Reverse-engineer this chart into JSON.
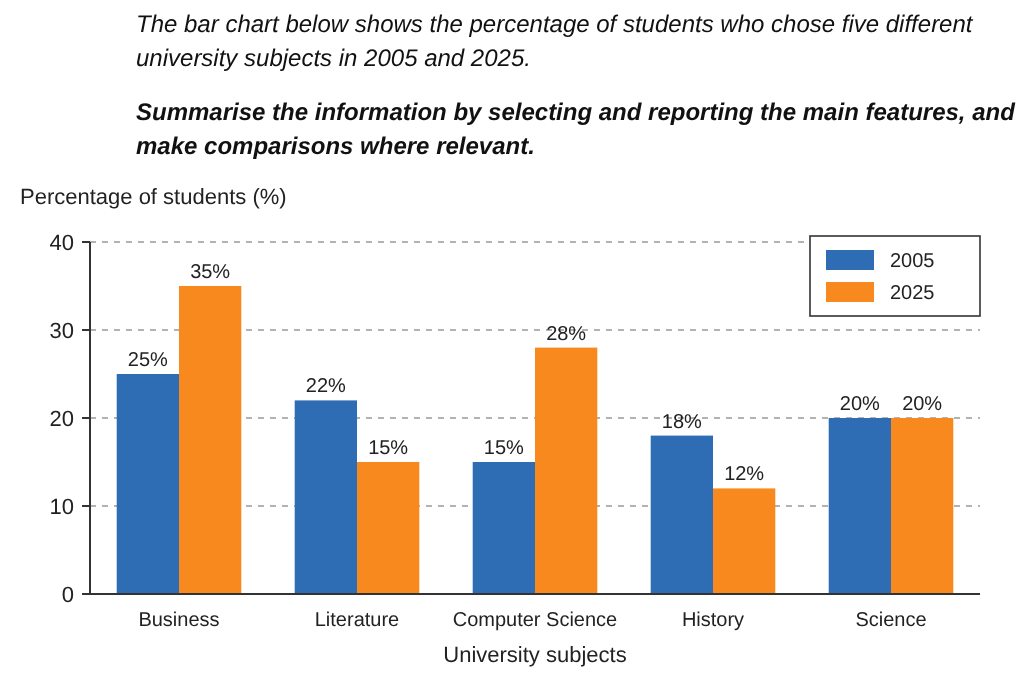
{
  "chart_data": {
    "type": "bar",
    "title": "The bar chart below shows the percentage of students who chose five different university subjects in 2005 and 2025.",
    "subtitle": "Summarise the information by selecting and reporting the main features, and make comparisons where relevant.",
    "ylabel": "Percentage of students (%)",
    "xlabel": "University subjects",
    "categories": [
      "Business",
      "Literature",
      "Computer Science",
      "History",
      "Science"
    ],
    "series": [
      {
        "name": "2005",
        "color": "#2e6db4",
        "values": [
          25,
          22,
          15,
          18,
          20
        ],
        "value_labels": [
          "25%",
          "22%",
          "15%",
          "18%",
          "20%"
        ]
      },
      {
        "name": "2025",
        "color": "#f7891f",
        "values": [
          35,
          15,
          28,
          12,
          20
        ],
        "value_labels": [
          "35%",
          "15%",
          "28%",
          "12%",
          "20%"
        ]
      }
    ],
    "ylim": [
      0,
      40
    ],
    "yticks": [
      0,
      10,
      20,
      30,
      40
    ],
    "grid": "y",
    "legend": "top right"
  }
}
